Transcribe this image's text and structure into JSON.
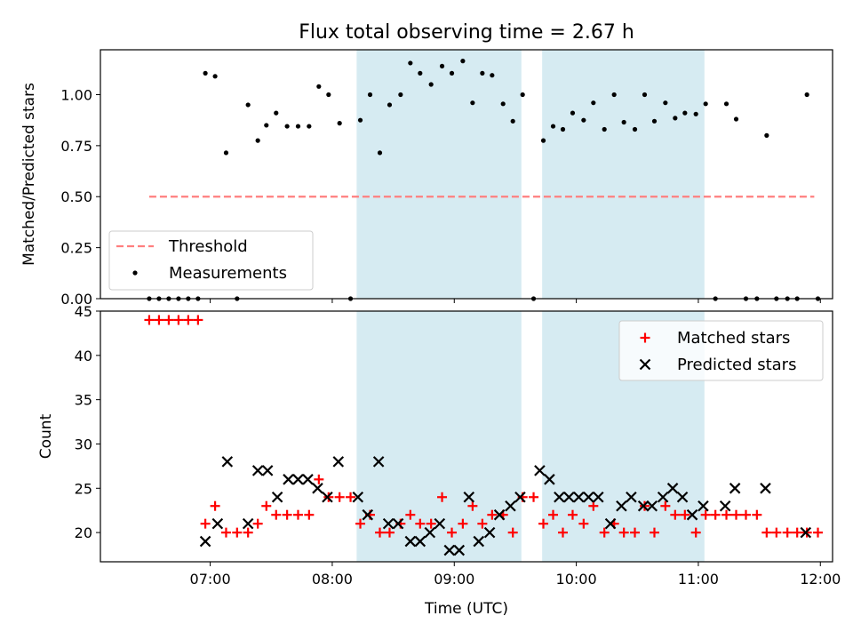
{
  "title": "Flux total observing time = 2.67 h",
  "colors": {
    "threshold": "#ff7f7f",
    "measurement": "#000000",
    "matched": "#ff0000",
    "predicted": "#000000",
    "band": "#add8e6"
  },
  "chart_data": [
    {
      "type": "scatter",
      "ylabel": "Matched/Predicted stars",
      "xlim": [
        6.1,
        12.1
      ],
      "ylim": [
        0.0,
        1.22
      ],
      "yticks": [
        0.0,
        0.25,
        0.5,
        0.75,
        1.0
      ],
      "ytick_labels": [
        "0.00",
        "0.25",
        "0.50",
        "0.75",
        "1.00"
      ],
      "legend_position": "lower-left",
      "shaded_intervals": [
        [
          8.2,
          9.55
        ],
        [
          9.72,
          11.05
        ]
      ],
      "threshold": {
        "name": "Threshold",
        "y": 0.5,
        "x": [
          6.5,
          11.95
        ]
      },
      "series": [
        {
          "name": "Measurements",
          "x": [
            6.5,
            6.58,
            6.66,
            6.74,
            6.82,
            6.9,
            6.96,
            7.04,
            7.13,
            7.22,
            7.31,
            7.39,
            7.46,
            7.54,
            7.63,
            7.72,
            7.81,
            7.89,
            7.97,
            8.06,
            8.15,
            8.23,
            8.31,
            8.39,
            8.47,
            8.56,
            8.64,
            8.72,
            8.81,
            8.9,
            8.98,
            9.07,
            9.15,
            9.23,
            9.31,
            9.4,
            9.48,
            9.56,
            9.65,
            9.73,
            9.81,
            9.89,
            9.97,
            10.06,
            10.14,
            10.23,
            10.31,
            10.39,
            10.48,
            10.56,
            10.64,
            10.73,
            10.81,
            10.89,
            10.98,
            11.06,
            11.14,
            11.23,
            11.31,
            11.39,
            11.48,
            11.56,
            11.64,
            11.73,
            11.81,
            11.89,
            11.98
          ],
          "y": [
            0,
            0,
            0,
            0,
            0,
            0,
            1.105,
            1.09,
            0.715,
            0,
            0.95,
            0.775,
            0.85,
            0.91,
            0.845,
            0.845,
            0.845,
            1.04,
            1.0,
            0.86,
            0,
            0.875,
            1.0,
            0.715,
            0.95,
            1.0,
            1.155,
            1.105,
            1.05,
            1.14,
            1.105,
            1.165,
            0.96,
            1.105,
            1.095,
            0.955,
            0.87,
            1.0,
            0,
            0.775,
            0.845,
            0.83,
            0.91,
            0.875,
            0.96,
            0.83,
            1.0,
            0.865,
            0.83,
            1.0,
            0.87,
            0.96,
            0.885,
            0.91,
            0.905,
            0.955,
            0,
            0.955,
            0.88,
            0,
            0,
            0.8,
            0,
            0,
            0,
            1.0,
            0
          ]
        }
      ]
    },
    {
      "type": "scatter",
      "xlabel": "Time (UTC)",
      "ylabel": "Count",
      "xlim": [
        6.1,
        12.1
      ],
      "ylim": [
        16.7,
        45.0
      ],
      "yticks": [
        20,
        25,
        30,
        35,
        40,
        45
      ],
      "xticks": [
        7,
        8,
        9,
        10,
        11,
        12
      ],
      "xtick_labels": [
        "07:00",
        "08:00",
        "09:00",
        "10:00",
        "11:00",
        "12:00"
      ],
      "legend_position": "upper-right",
      "shaded_intervals": [
        [
          8.2,
          9.55
        ],
        [
          9.72,
          11.05
        ]
      ],
      "series": [
        {
          "name": "Matched stars",
          "x": [
            6.5,
            6.58,
            6.66,
            6.74,
            6.82,
            6.9,
            6.96,
            7.04,
            7.13,
            7.22,
            7.31,
            7.39,
            7.46,
            7.54,
            7.63,
            7.72,
            7.81,
            7.89,
            7.97,
            8.06,
            8.15,
            8.23,
            8.31,
            8.39,
            8.47,
            8.56,
            8.64,
            8.72,
            8.81,
            8.9,
            8.98,
            9.07,
            9.15,
            9.23,
            9.31,
            9.4,
            9.48,
            9.56,
            9.65,
            9.73,
            9.81,
            9.89,
            9.97,
            10.06,
            10.14,
            10.23,
            10.31,
            10.39,
            10.48,
            10.56,
            10.64,
            10.73,
            10.81,
            10.89,
            10.98,
            11.06,
            11.14,
            11.23,
            11.31,
            11.39,
            11.48,
            11.56,
            11.64,
            11.73,
            11.81,
            11.89,
            11.98
          ],
          "y": [
            44,
            44,
            44,
            44,
            44,
            44,
            21,
            23,
            20,
            20,
            20,
            21,
            23,
            22,
            22,
            22,
            22,
            26,
            24,
            24,
            24,
            21,
            22,
            20,
            20,
            21,
            22,
            21,
            21,
            24,
            20,
            21,
            23,
            21,
            22,
            22,
            20,
            24,
            24,
            21,
            22,
            20,
            22,
            21,
            23,
            20,
            21,
            20,
            20,
            23,
            20,
            23,
            22,
            22,
            20,
            22,
            22,
            22,
            22,
            22,
            22,
            20,
            20,
            20,
            20,
            20,
            20
          ]
        },
        {
          "name": "Predicted stars",
          "x": [
            6.96,
            7.06,
            7.14,
            7.31,
            7.39,
            7.47,
            7.55,
            7.64,
            7.72,
            7.8,
            7.88,
            7.96,
            8.05,
            8.21,
            8.29,
            8.38,
            8.46,
            8.54,
            8.64,
            8.72,
            8.8,
            8.88,
            8.96,
            9.04,
            9.12,
            9.2,
            9.29,
            9.37,
            9.46,
            9.54,
            9.7,
            9.78,
            9.86,
            9.94,
            10.02,
            10.1,
            10.18,
            10.28,
            10.37,
            10.45,
            10.55,
            10.62,
            10.71,
            10.79,
            10.87,
            10.95,
            11.04,
            11.22,
            11.3,
            11.55,
            11.88
          ],
          "y": [
            19,
            21,
            28,
            21,
            27,
            27,
            24,
            26,
            26,
            26,
            25,
            24,
            28,
            24,
            22,
            28,
            21,
            21,
            19,
            19,
            20,
            21,
            18,
            18,
            24,
            19,
            20,
            22,
            23,
            24,
            27,
            26,
            24,
            24,
            24,
            24,
            24,
            21,
            23,
            24,
            23,
            23,
            24,
            25,
            24,
            22,
            23,
            23,
            25,
            25,
            20
          ]
        }
      ]
    }
  ]
}
